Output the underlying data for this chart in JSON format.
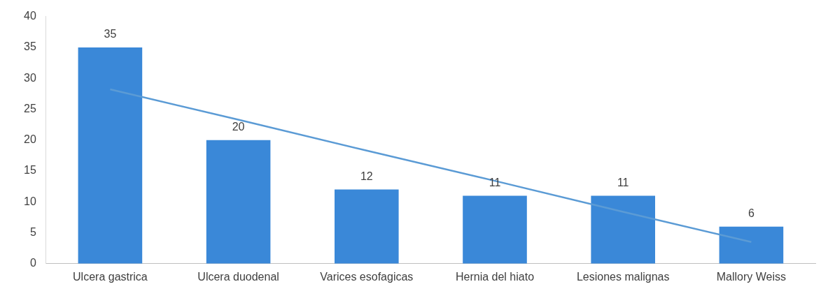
{
  "chart_data": {
    "type": "bar",
    "categories": [
      "Ulcera gastrica",
      "Ulcera duodenal",
      "Varices esofagicas",
      "Hernia del hiato",
      "Lesiones malignas",
      "Mallory Weiss"
    ],
    "series": [
      {
        "color": "#3a88d8",
        "values": [
          35,
          20,
          12,
          11,
          11,
          6
        ],
        "value_labels": [
          "35",
          "20",
          "12",
          "11",
          "11",
          "6"
        ]
      },
      {
        "type": "line",
        "color": "#5b9bd5",
        "values": [
          28.2,
          23.3,
          18.3,
          13.4,
          8.4,
          3.5
        ]
      }
    ],
    "ylim": [
      0,
      40
    ],
    "yticks": [
      0,
      5,
      10,
      15,
      20,
      25,
      30,
      35,
      40
    ],
    "grid": false,
    "legend": false,
    "marker": "none"
  }
}
